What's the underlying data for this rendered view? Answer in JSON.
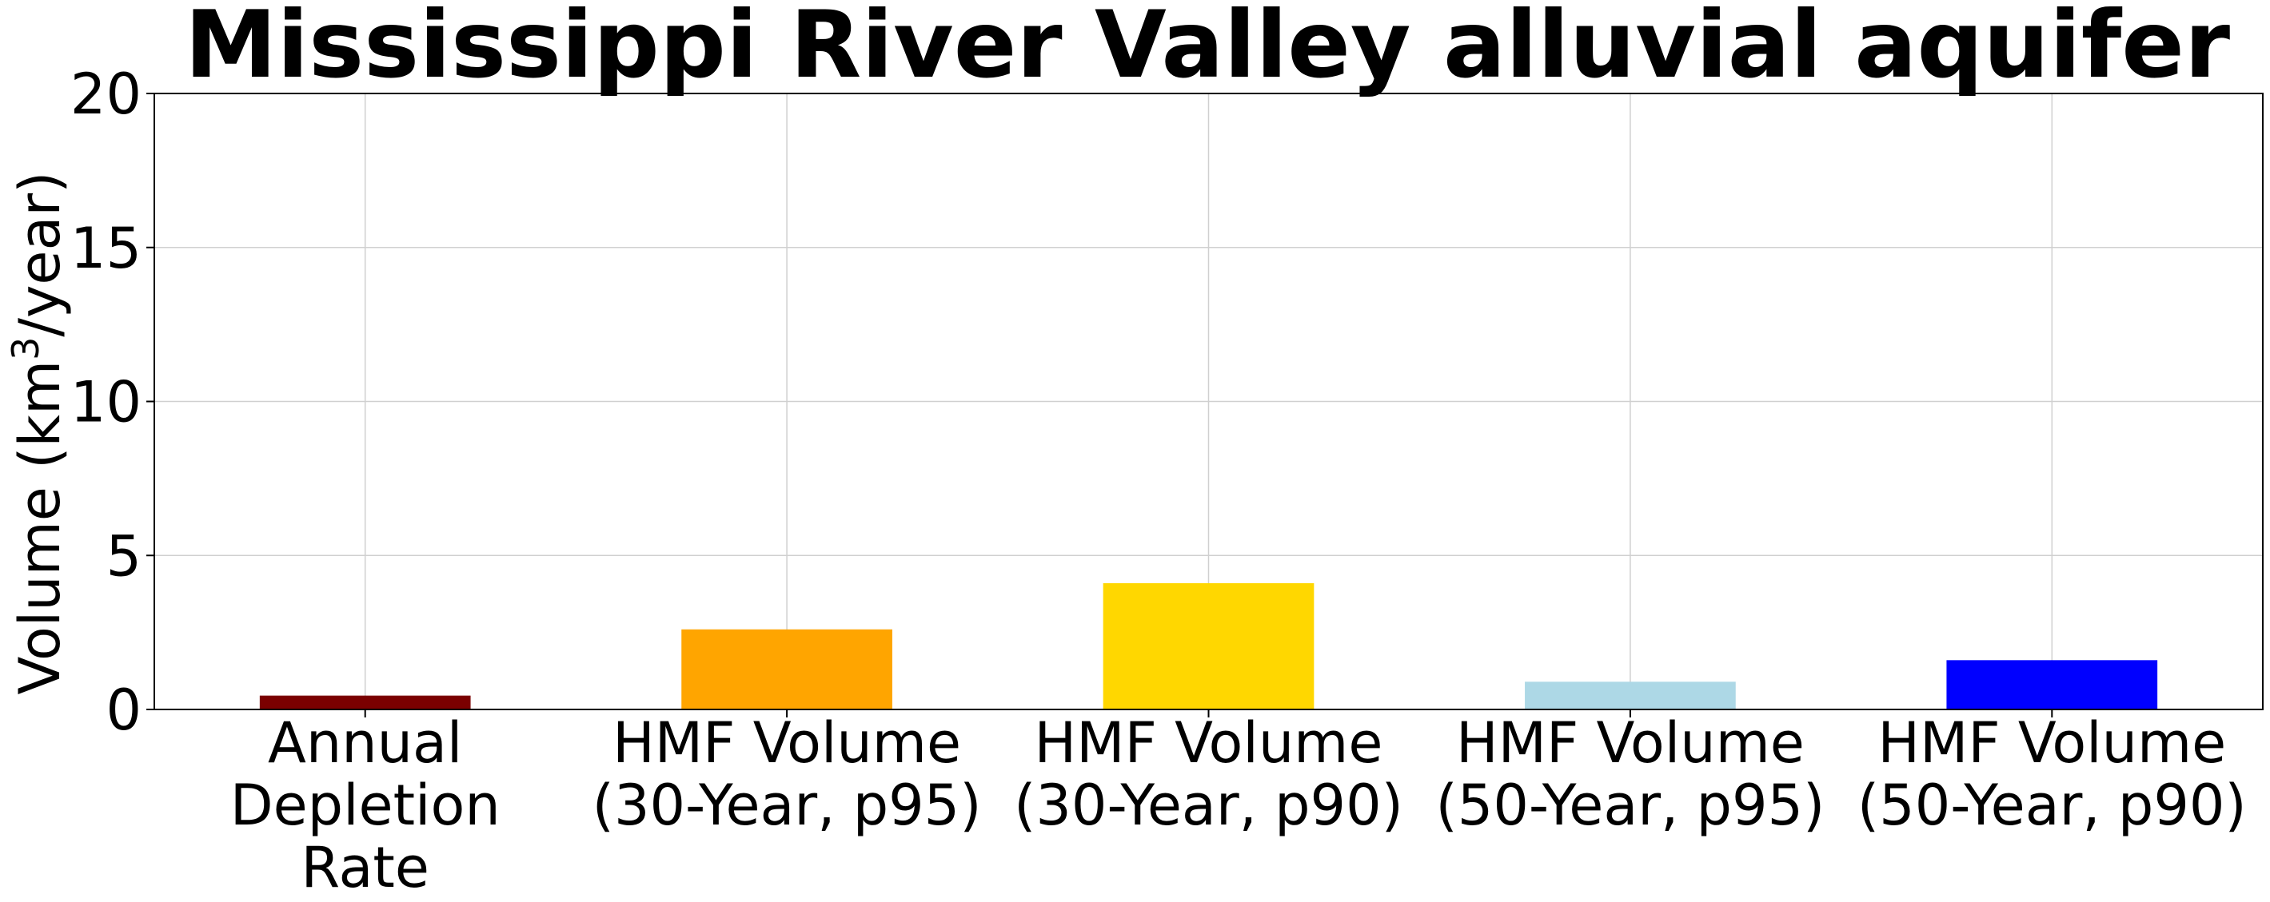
{
  "chart_data": {
    "type": "bar",
    "title": "Mississippi River Valley alluvial aquifer",
    "ylabel_prefix": "Volume (km",
    "ylabel_sup": "3",
    "ylabel_suffix": "/year)",
    "categories": [
      [
        "Annual",
        "Depletion",
        "Rate"
      ],
      [
        "HMF Volume",
        "(30-Year, p95)"
      ],
      [
        "HMF Volume",
        "(30-Year, p90)"
      ],
      [
        "HMF Volume",
        "(50-Year, p95)"
      ],
      [
        "HMF Volume",
        "(50-Year, p90)"
      ]
    ],
    "values": [
      0.45,
      2.6,
      4.1,
      0.9,
      1.6
    ],
    "colors": [
      "#7b0000",
      "#ffa500",
      "#ffd700",
      "#add8e6",
      "#0000ff"
    ],
    "ylim": [
      0,
      20
    ],
    "yticks": [
      0,
      5,
      10,
      15,
      20
    ],
    "grid": true
  }
}
